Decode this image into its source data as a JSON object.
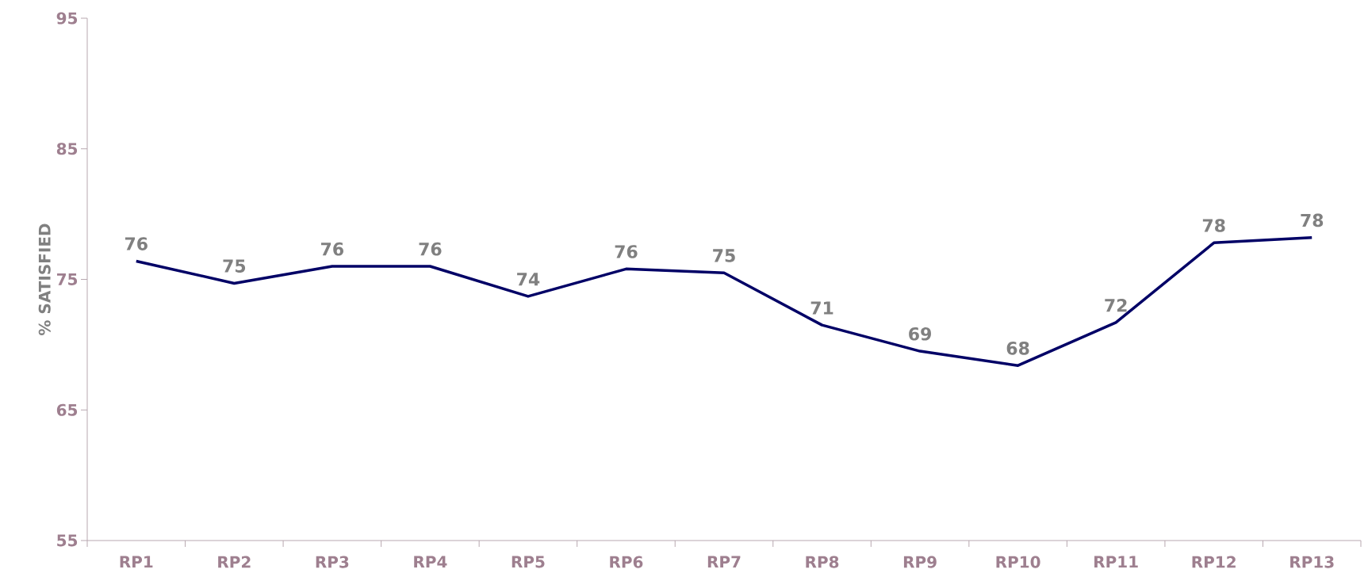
{
  "chart_data": {
    "type": "line",
    "ylabel": "% SATISFIED",
    "categories": [
      "RP1",
      "RP2",
      "RP3",
      "RP4",
      "RP5",
      "RP6",
      "RP7",
      "RP8",
      "RP9",
      "RP10",
      "RP11",
      "RP12",
      "RP13"
    ],
    "values": [
      76.4,
      74.7,
      76.0,
      76.0,
      73.7,
      75.8,
      75.5,
      71.5,
      69.5,
      68.4,
      71.7,
      77.8,
      78.2
    ],
    "value_labels": [
      "76",
      "75",
      "76",
      "76",
      "74",
      "76",
      "75",
      "71",
      "69",
      "68",
      "72",
      "78",
      "78"
    ],
    "color": "#000066",
    "ylim": [
      55,
      95
    ],
    "yticks": [
      55,
      65,
      75,
      85,
      95
    ],
    "grid": false,
    "marker": "none",
    "line_style": "solid"
  }
}
